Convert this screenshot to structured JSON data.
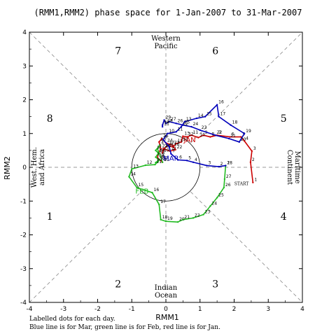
{
  "title": "(RMM1,RMM2) phase space for  1-Jan-2007 to 31-Mar-2007",
  "footer": {
    "line1": "Labelled dots for each day.",
    "line2": "Blue line is for Mar, green line is for Feb, red line is for Jan."
  },
  "chart_data": {
    "type": "line",
    "title": "(RMM1,RMM2) phase space for  1-Jan-2007 to 31-Mar-2007",
    "xlabel": "RMM1",
    "ylabel": "RMM2",
    "xlim": [
      -4,
      4
    ],
    "ylim": [
      -4,
      4
    ],
    "xticks": [
      -4,
      -3,
      -2,
      -1,
      0,
      1,
      2,
      3,
      4
    ],
    "yticks": [
      -4,
      -3,
      -2,
      -1,
      0,
      1,
      2,
      3,
      4
    ],
    "xtick_labels": [
      "-4",
      "-3",
      "-2",
      "-1",
      "0",
      "1",
      "2",
      "3",
      "4"
    ],
    "ytick_labels": [
      "-4",
      "-3",
      "-2",
      "-1",
      "0",
      "1",
      "2",
      "3",
      "4"
    ],
    "unit_circle_radius": 1,
    "phases": [
      {
        "label": "1",
        "x": -3.4,
        "y": -1.45
      },
      {
        "label": "2",
        "x": -1.4,
        "y": -3.45
      },
      {
        "label": "3",
        "x": 1.45,
        "y": -3.45
      },
      {
        "label": "4",
        "x": 3.45,
        "y": -1.45
      },
      {
        "label": "5",
        "x": 3.45,
        "y": 1.45
      },
      {
        "label": "6",
        "x": 1.45,
        "y": 3.45
      },
      {
        "label": "7",
        "x": -1.4,
        "y": 3.45
      },
      {
        "label": "8",
        "x": -3.4,
        "y": 1.45
      }
    ],
    "regions": [
      {
        "name": "western-pacific",
        "lines": [
          "Western",
          "Pacific"
        ]
      },
      {
        "name": "maritime-continent",
        "lines": [
          "Maritime",
          "Continent"
        ]
      },
      {
        "name": "indian-ocean",
        "lines": [
          "Indian",
          "Ocean"
        ]
      },
      {
        "name": "west-hem-africa",
        "lines": [
          "West. Hem.",
          "and Africa"
        ]
      }
    ],
    "start_label": "START",
    "series": [
      {
        "name": "JAN",
        "color": "#cc0000",
        "points": [
          {
            "d": "1",
            "x": 2.55,
            "y": -0.45
          },
          {
            "d": "2",
            "x": 2.48,
            "y": 0.15
          },
          {
            "d": "3",
            "x": 2.52,
            "y": 0.48
          },
          {
            "d": "4",
            "x": 2.3,
            "y": 0.78
          },
          {
            "d": "5",
            "x": 2.2,
            "y": 0.9
          },
          {
            "d": "6",
            "x": 1.88,
            "y": 0.9
          },
          {
            "d": "7",
            "x": 1.5,
            "y": 0.95
          },
          {
            "d": "8",
            "x": 1.3,
            "y": 0.9
          },
          {
            "d": "9",
            "x": 1.1,
            "y": 0.95
          },
          {
            "d": "10",
            "x": 0.95,
            "y": 0.88
          },
          {
            "d": "11",
            "x": 0.75,
            "y": 0.95
          },
          {
            "d": "12",
            "x": 0.62,
            "y": 0.9
          },
          {
            "d": "13",
            "x": 0.5,
            "y": 0.92
          },
          {
            "d": "14",
            "x": 0.45,
            "y": 0.75
          },
          {
            "d": "15",
            "x": 0.3,
            "y": 0.7
          },
          {
            "d": "16",
            "x": 0.2,
            "y": 0.6
          },
          {
            "d": "17",
            "x": 0.05,
            "y": 0.65
          },
          {
            "d": "18",
            "x": -0.05,
            "y": 0.55
          },
          {
            "d": "19",
            "x": -0.1,
            "y": 0.42
          },
          {
            "d": "20",
            "x": -0.08,
            "y": 0.55
          },
          {
            "d": "21",
            "x": 0.12,
            "y": 0.48
          },
          {
            "d": "22",
            "x": 0.28,
            "y": 0.52
          },
          {
            "d": "23",
            "x": 0.2,
            "y": 0.65
          },
          {
            "d": "24",
            "x": 0.0,
            "y": 0.72
          },
          {
            "d": "25",
            "x": -0.12,
            "y": 0.85
          },
          {
            "d": "26",
            "x": -0.2,
            "y": 0.75
          },
          {
            "d": "27",
            "x": -0.15,
            "y": 0.55
          },
          {
            "d": "28",
            "x": -0.22,
            "y": 0.4
          },
          {
            "d": "29",
            "x": -0.25,
            "y": 0.28
          },
          {
            "d": "30",
            "x": -0.15,
            "y": 0.2
          },
          {
            "d": "31",
            "x": -0.1,
            "y": 0.15
          }
        ],
        "month_label": {
          "text": "JAN",
          "x": 0.7,
          "y": 0.75
        }
      },
      {
        "name": "FEB",
        "color": "#22bb22",
        "points": [
          {
            "d": "1",
            "x": -0.1,
            "y": 0.15
          },
          {
            "d": "2",
            "x": -0.15,
            "y": 0.3
          },
          {
            "d": "3",
            "x": -0.25,
            "y": 0.55
          },
          {
            "d": "4",
            "x": -0.18,
            "y": 0.65
          },
          {
            "d": "5",
            "x": -0.3,
            "y": 0.5
          },
          {
            "d": "6",
            "x": -0.22,
            "y": 0.42
          },
          {
            "d": "7",
            "x": -0.3,
            "y": 0.3
          },
          {
            "d": "8",
            "x": -0.2,
            "y": 0.22
          },
          {
            "d": "9",
            "x": -0.3,
            "y": 0.14
          },
          {
            "d": "10",
            "x": -0.22,
            "y": 0.18
          },
          {
            "d": "11",
            "x": -0.32,
            "y": 0.08
          },
          {
            "d": "12",
            "x": -0.6,
            "y": 0.06
          },
          {
            "d": "13",
            "x": -1.0,
            "y": -0.05
          },
          {
            "d": "14",
            "x": -1.08,
            "y": -0.28
          },
          {
            "d": "15",
            "x": -0.85,
            "y": -0.6
          },
          {
            "d": "16",
            "x": -0.4,
            "y": -0.75
          },
          {
            "d": "17",
            "x": -0.2,
            "y": -1.1
          },
          {
            "d": "18",
            "x": -0.15,
            "y": -1.55
          },
          {
            "d": "19",
            "x": 0.0,
            "y": -1.6
          },
          {
            "d": "20",
            "x": 0.35,
            "y": -1.62
          },
          {
            "d": "21",
            "x": 0.5,
            "y": -1.55
          },
          {
            "d": "22",
            "x": 0.8,
            "y": -1.5
          },
          {
            "d": "23",
            "x": 1.1,
            "y": -1.4
          },
          {
            "d": "24",
            "x": 1.3,
            "y": -1.15
          },
          {
            "d": "25",
            "x": 1.5,
            "y": -0.9
          },
          {
            "d": "26",
            "x": 1.7,
            "y": -0.6
          },
          {
            "d": "27",
            "x": 1.72,
            "y": -0.35
          },
          {
            "d": "28",
            "x": 1.75,
            "y": 0.05
          }
        ],
        "month_label": {
          "text": "FEB",
          "x": -0.7,
          "y": -0.78
        }
      },
      {
        "name": "MAR",
        "color": "#0000bb",
        "points": [
          {
            "d": "1",
            "x": 1.75,
            "y": 0.05
          },
          {
            "d": "2",
            "x": 1.55,
            "y": 0.02
          },
          {
            "d": "3",
            "x": 1.2,
            "y": 0.05
          },
          {
            "d": "4",
            "x": 0.8,
            "y": 0.15
          },
          {
            "d": "5",
            "x": 0.62,
            "y": 0.2
          },
          {
            "d": "6",
            "x": 0.35,
            "y": 0.22
          },
          {
            "d": "7",
            "x": 0.15,
            "y": 0.4
          },
          {
            "d": "8",
            "x": 0.1,
            "y": 0.6
          },
          {
            "d": "9",
            "x": -0.08,
            "y": 0.82
          },
          {
            "d": "10",
            "x": 0.05,
            "y": 1.0
          },
          {
            "d": "11",
            "x": 0.3,
            "y": 1.05
          },
          {
            "d": "12",
            "x": 0.45,
            "y": 1.2
          },
          {
            "d": "13",
            "x": 0.55,
            "y": 1.35
          },
          {
            "d": "14",
            "x": 0.9,
            "y": 1.45
          },
          {
            "d": "15",
            "x": 1.15,
            "y": 1.5
          },
          {
            "d": "16",
            "x": 1.5,
            "y": 1.85
          },
          {
            "d": "17",
            "x": 1.55,
            "y": 1.5
          },
          {
            "d": "18",
            "x": 1.9,
            "y": 1.25
          },
          {
            "d": "19",
            "x": 2.3,
            "y": 1.0
          },
          {
            "d": "20",
            "x": 2.15,
            "y": 0.75
          },
          {
            "d": "21",
            "x": 1.85,
            "y": 0.85
          },
          {
            "d": "22",
            "x": 1.45,
            "y": 0.95
          },
          {
            "d": "23",
            "x": 1.0,
            "y": 1.1
          },
          {
            "d": "24",
            "x": 0.75,
            "y": 1.2
          },
          {
            "d": "25",
            "x": 0.5,
            "y": 1.25
          },
          {
            "d": "26",
            "x": 0.3,
            "y": 1.3
          },
          {
            "d": "27",
            "x": 0.1,
            "y": 1.35
          },
          {
            "d": "28",
            "x": 0.0,
            "y": 1.3
          },
          {
            "d": "29",
            "x": -0.05,
            "y": 1.4
          },
          {
            "d": "30",
            "x": -0.1,
            "y": 1.25
          },
          {
            "d": "31",
            "x": -0.1,
            "y": 1.2
          }
        ],
        "month_label": {
          "text": "MAR",
          "x": 0.15,
          "y": 0.2
        }
      }
    ]
  }
}
